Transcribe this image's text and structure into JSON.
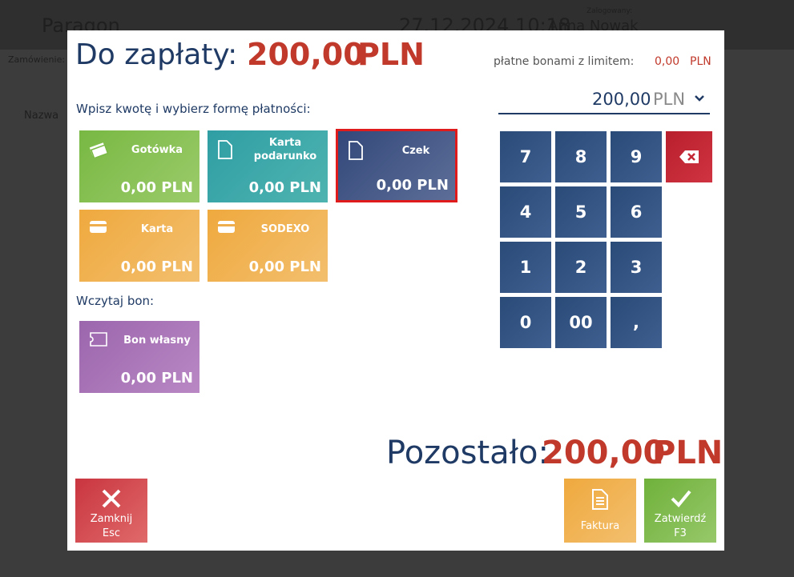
{
  "background": {
    "app_title": "Paragon",
    "datetime": "27.12.2024 10:18",
    "logged_label": "Zalogowany:",
    "user": "Anna Nowak",
    "order_label": "Zamówienie:",
    "column": "Nazwa"
  },
  "header": {
    "title": "Do zapłaty:",
    "amount": "200,00",
    "currency": "PLN"
  },
  "voucher_limit": {
    "label": "płatne bonami z limitem:",
    "amount": "0,00",
    "currency": "PLN"
  },
  "input": {
    "amount": "200,00",
    "currency": "PLN"
  },
  "payment_section": {
    "label": "Wpisz kwotę i wybierz formę płatności:",
    "tiles": [
      {
        "name": "Gotówka",
        "amount": "0,00 PLN"
      },
      {
        "name": "Karta podarunko",
        "amount": "0,00 PLN"
      },
      {
        "name": "Czek",
        "amount": "0,00 PLN"
      },
      {
        "name": "Karta",
        "amount": "0,00 PLN"
      },
      {
        "name": "SODEXO",
        "amount": "0,00 PLN"
      }
    ]
  },
  "voucher_section": {
    "label": "Wczytaj bon:",
    "tiles": [
      {
        "name": "Bon własny",
        "amount": "0,00 PLN"
      }
    ]
  },
  "keypad": {
    "keys": [
      "7",
      "8",
      "9",
      "4",
      "5",
      "6",
      "1",
      "2",
      "3",
      "0",
      "00",
      ","
    ]
  },
  "remaining": {
    "label": "Pozostało:",
    "amount": "200,00",
    "currency": "PLN"
  },
  "buttons": [
    {
      "label": "Zamknij",
      "shortcut": "Esc"
    },
    {
      "label": "Faktura"
    },
    {
      "label": "Zatwierdź",
      "shortcut": "F3"
    }
  ]
}
